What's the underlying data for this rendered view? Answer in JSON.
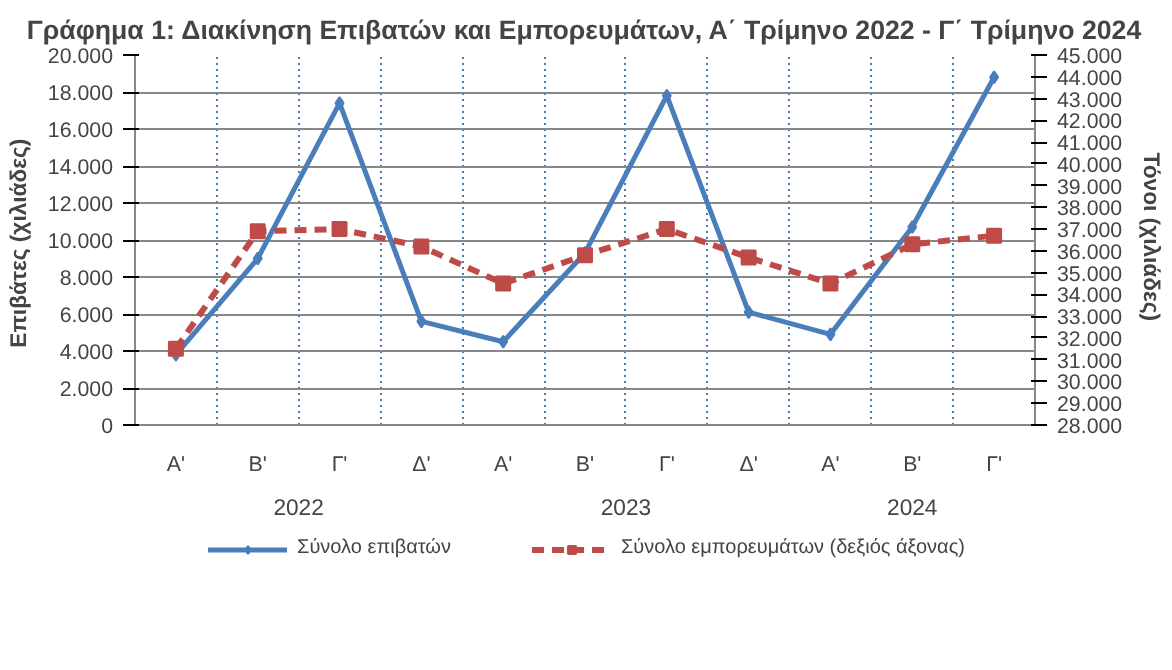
{
  "chart_data": {
    "type": "line",
    "title": "Γράφημα 1: Διακίνηση Επιβατών και Εμπορευμάτων, Α΄ Τρίμηνο 2022 - Γ΄ Τρίμηνο 2024",
    "categories": [
      "Α'",
      "Β'",
      "Γ'",
      "Δ'",
      "Α'",
      "Β'",
      "Γ'",
      "Δ'",
      "Α'",
      "Β'",
      "Γ'"
    ],
    "series": [
      {
        "name": "Σύνολο επιβατών",
        "color": "#4a7ebb",
        "marker": "diamond",
        "line_style": "solid",
        "values": [
          3800,
          9000,
          17400,
          5600,
          4500,
          9300,
          17800,
          6100,
          4900,
          10700,
          18800
        ]
      },
      {
        "name": "Σύνολο εμπορευμάτων (δεξιός άξονας)",
        "color": "#be4b48",
        "marker": "square",
        "line_style": "dashed",
        "axis": "y2",
        "values": [
          31500,
          36900,
          37000,
          36200,
          34500,
          35800,
          37000,
          35700,
          34500,
          36300,
          36700
        ]
      }
    ],
    "ylabel": "Επιβάτες  (χιλιάδες)",
    "y2label": "Τόνοι  (χιλιάδες)",
    "ylim": [
      0,
      20000
    ],
    "yticks": [
      {
        "value": 0,
        "label": "0"
      },
      {
        "value": 2000,
        "label": "2.000"
      },
      {
        "value": 4000,
        "label": "4.000"
      },
      {
        "value": 6000,
        "label": "6.000"
      },
      {
        "value": 8000,
        "label": "8.000"
      },
      {
        "value": 10000,
        "label": "10.000"
      },
      {
        "value": 12000,
        "label": "12.000"
      },
      {
        "value": 14000,
        "label": "14.000"
      },
      {
        "value": 16000,
        "label": "16.000"
      },
      {
        "value": 18000,
        "label": "18.000"
      },
      {
        "value": 20000,
        "label": "20.000"
      }
    ],
    "y2lim": [
      28000,
      45000
    ],
    "y2ticks": [
      {
        "value": 28000,
        "label": "28.000"
      },
      {
        "value": 29000,
        "label": "29.000"
      },
      {
        "value": 30000,
        "label": "30.000"
      },
      {
        "value": 31000,
        "label": "31.000"
      },
      {
        "value": 32000,
        "label": "32.000"
      },
      {
        "value": 33000,
        "label": "33.000"
      },
      {
        "value": 34000,
        "label": "34.000"
      },
      {
        "value": 35000,
        "label": "35.000"
      },
      {
        "value": 36000,
        "label": "36.000"
      },
      {
        "value": 37000,
        "label": "37.000"
      },
      {
        "value": 38000,
        "label": "38.000"
      },
      {
        "value": 39000,
        "label": "39.000"
      },
      {
        "value": 40000,
        "label": "40.000"
      },
      {
        "value": 41000,
        "label": "41.000"
      },
      {
        "value": 42000,
        "label": "42.000"
      },
      {
        "value": 43000,
        "label": "43.000"
      },
      {
        "value": 44000,
        "label": "44.000"
      },
      {
        "value": 45000,
        "label": "45.000"
      }
    ],
    "annotations": [
      "2022",
      "2023",
      "2024"
    ],
    "grid": true,
    "legend": "bottom"
  }
}
